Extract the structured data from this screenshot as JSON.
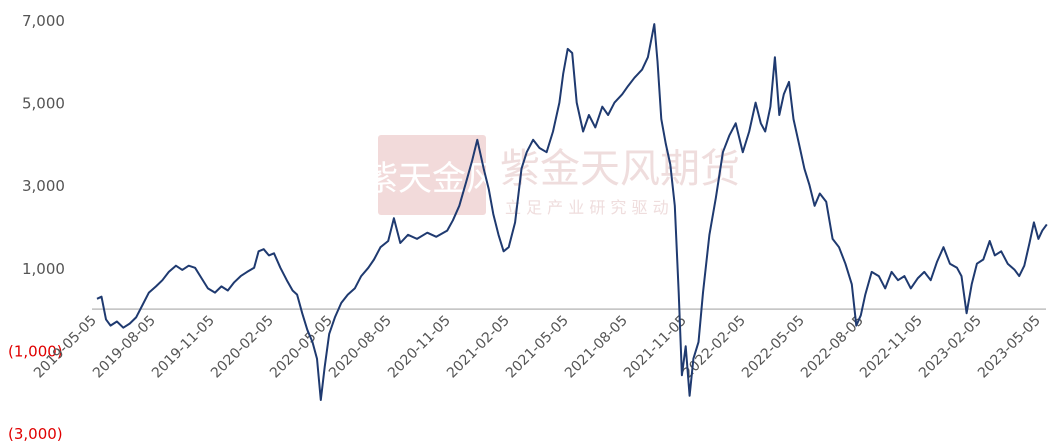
{
  "chart_data": {
    "type": "line",
    "title": "",
    "xlabel": "",
    "ylabel": "",
    "ylim": [
      -3000,
      7000
    ],
    "y_ticks": [
      {
        "value": 7000,
        "label": "7,000"
      },
      {
        "value": 5000,
        "label": "5,000"
      },
      {
        "value": 3000,
        "label": "3,000"
      },
      {
        "value": 1000,
        "label": "1,000"
      },
      {
        "value": -1000,
        "label": "(1,000)"
      },
      {
        "value": -3000,
        "label": "(3,000)"
      }
    ],
    "x_ticks": [
      "2019-05-05",
      "2019-08-05",
      "2019-11-05",
      "2020-02-05",
      "2020-05-05",
      "2020-08-05",
      "2020-11-05",
      "2021-02-05",
      "2021-05-05",
      "2021-08-05",
      "2021-11-05",
      "2022-02-05",
      "2022-05-05",
      "2022-08-05",
      "2022-11-05",
      "2023-02-05",
      "2023-05-05"
    ],
    "x_range": [
      "2019-05-05",
      "2023-05-25"
    ],
    "grid": false,
    "legend": "none",
    "series": [
      {
        "color": "#1f3a70",
        "points": [
          [
            "2019-05-05",
            250
          ],
          [
            "2019-05-12",
            300
          ],
          [
            "2019-05-19",
            -250
          ],
          [
            "2019-05-26",
            -400
          ],
          [
            "2019-06-05",
            -300
          ],
          [
            "2019-06-15",
            -450
          ],
          [
            "2019-06-25",
            -350
          ],
          [
            "2019-07-05",
            -200
          ],
          [
            "2019-07-15",
            100
          ],
          [
            "2019-07-25",
            400
          ],
          [
            "2019-08-05",
            550
          ],
          [
            "2019-08-15",
            700
          ],
          [
            "2019-08-25",
            900
          ],
          [
            "2019-09-05",
            1050
          ],
          [
            "2019-09-15",
            950
          ],
          [
            "2019-09-25",
            1050
          ],
          [
            "2019-10-05",
            1000
          ],
          [
            "2019-10-15",
            750
          ],
          [
            "2019-10-25",
            500
          ],
          [
            "2019-11-05",
            400
          ],
          [
            "2019-11-15",
            550
          ],
          [
            "2019-11-25",
            450
          ],
          [
            "2019-12-05",
            650
          ],
          [
            "2019-12-15",
            800
          ],
          [
            "2019-12-25",
            900
          ],
          [
            "2020-01-05",
            1000
          ],
          [
            "2020-01-12",
            1400
          ],
          [
            "2020-01-20",
            1450
          ],
          [
            "2020-01-28",
            1300
          ],
          [
            "2020-02-05",
            1350
          ],
          [
            "2020-02-15",
            1000
          ],
          [
            "2020-02-25",
            700
          ],
          [
            "2020-03-05",
            450
          ],
          [
            "2020-03-12",
            350
          ],
          [
            "2020-03-20",
            -100
          ],
          [
            "2020-03-28",
            -500
          ],
          [
            "2020-04-05",
            -800
          ],
          [
            "2020-04-12",
            -1200
          ],
          [
            "2020-04-18",
            -2200
          ],
          [
            "2020-04-24",
            -1400
          ],
          [
            "2020-05-01",
            -600
          ],
          [
            "2020-05-10",
            -200
          ],
          [
            "2020-05-20",
            150
          ],
          [
            "2020-05-30",
            350
          ],
          [
            "2020-06-10",
            500
          ],
          [
            "2020-06-20",
            800
          ],
          [
            "2020-07-01",
            1000
          ],
          [
            "2020-07-10",
            1200
          ],
          [
            "2020-07-20",
            1500
          ],
          [
            "2020-08-01",
            1650
          ],
          [
            "2020-08-10",
            2200
          ],
          [
            "2020-08-20",
            1600
          ],
          [
            "2020-09-01",
            1800
          ],
          [
            "2020-09-15",
            1700
          ],
          [
            "2020-10-01",
            1850
          ],
          [
            "2020-10-15",
            1750
          ],
          [
            "2020-11-01",
            1900
          ],
          [
            "2020-11-10",
            2150
          ],
          [
            "2020-11-20",
            2500
          ],
          [
            "2020-12-01",
            3100
          ],
          [
            "2020-12-10",
            3600
          ],
          [
            "2020-12-18",
            4100
          ],
          [
            "2020-12-28",
            3400
          ],
          [
            "2021-01-05",
            2900
          ],
          [
            "2021-01-12",
            2300
          ],
          [
            "2021-01-20",
            1800
          ],
          [
            "2021-01-28",
            1400
          ],
          [
            "2021-02-05",
            1500
          ],
          [
            "2021-02-15",
            2100
          ],
          [
            "2021-02-25",
            3400
          ],
          [
            "2021-03-05",
            3800
          ],
          [
            "2021-03-15",
            4100
          ],
          [
            "2021-03-25",
            3900
          ],
          [
            "2021-04-05",
            3800
          ],
          [
            "2021-04-15",
            4300
          ],
          [
            "2021-04-25",
            5000
          ],
          [
            "2021-05-01",
            5700
          ],
          [
            "2021-05-08",
            6300
          ],
          [
            "2021-05-15",
            6200
          ],
          [
            "2021-05-22",
            5000
          ],
          [
            "2021-06-01",
            4300
          ],
          [
            "2021-06-10",
            4700
          ],
          [
            "2021-06-20",
            4400
          ],
          [
            "2021-07-01",
            4900
          ],
          [
            "2021-07-10",
            4700
          ],
          [
            "2021-07-20",
            5000
          ],
          [
            "2021-08-01",
            5200
          ],
          [
            "2021-08-10",
            5400
          ],
          [
            "2021-08-20",
            5600
          ],
          [
            "2021-09-01",
            5800
          ],
          [
            "2021-09-10",
            6100
          ],
          [
            "2021-09-20",
            6900
          ],
          [
            "2021-09-25",
            6000
          ],
          [
            "2021-10-01",
            4600
          ],
          [
            "2021-10-08",
            4000
          ],
          [
            "2021-10-15",
            3500
          ],
          [
            "2021-10-22",
            2500
          ],
          [
            "2021-10-28",
            400
          ],
          [
            "2021-11-02",
            -1600
          ],
          [
            "2021-11-08",
            -900
          ],
          [
            "2021-11-14",
            -2100
          ],
          [
            "2021-11-20",
            -1200
          ],
          [
            "2021-11-28",
            -800
          ],
          [
            "2021-12-05",
            400
          ],
          [
            "2021-12-15",
            1800
          ],
          [
            "2021-12-25",
            2700
          ],
          [
            "2022-01-05",
            3800
          ],
          [
            "2022-01-15",
            4200
          ],
          [
            "2022-01-25",
            4500
          ],
          [
            "2022-02-05",
            3800
          ],
          [
            "2022-02-15",
            4300
          ],
          [
            "2022-02-25",
            5000
          ],
          [
            "2022-03-05",
            4500
          ],
          [
            "2022-03-12",
            4300
          ],
          [
            "2022-03-20",
            4900
          ],
          [
            "2022-03-27",
            6100
          ],
          [
            "2022-04-03",
            4700
          ],
          [
            "2022-04-10",
            5200
          ],
          [
            "2022-04-18",
            5500
          ],
          [
            "2022-04-25",
            4600
          ],
          [
            "2022-05-05",
            3900
          ],
          [
            "2022-05-12",
            3400
          ],
          [
            "2022-05-20",
            3000
          ],
          [
            "2022-05-28",
            2500
          ],
          [
            "2022-06-05",
            2800
          ],
          [
            "2022-06-15",
            2600
          ],
          [
            "2022-06-25",
            1700
          ],
          [
            "2022-07-05",
            1500
          ],
          [
            "2022-07-15",
            1100
          ],
          [
            "2022-07-25",
            600
          ],
          [
            "2022-08-01",
            -400
          ],
          [
            "2022-08-08",
            -150
          ],
          [
            "2022-08-15",
            350
          ],
          [
            "2022-08-25",
            900
          ],
          [
            "2022-09-05",
            800
          ],
          [
            "2022-09-15",
            500
          ],
          [
            "2022-09-25",
            900
          ],
          [
            "2022-10-05",
            700
          ],
          [
            "2022-10-15",
            800
          ],
          [
            "2022-10-25",
            500
          ],
          [
            "2022-11-05",
            750
          ],
          [
            "2022-11-15",
            900
          ],
          [
            "2022-11-25",
            700
          ],
          [
            "2022-12-05",
            1150
          ],
          [
            "2022-12-15",
            1500
          ],
          [
            "2022-12-25",
            1100
          ],
          [
            "2023-01-05",
            1000
          ],
          [
            "2023-01-12",
            800
          ],
          [
            "2023-01-20",
            -100
          ],
          [
            "2023-01-28",
            600
          ],
          [
            "2023-02-05",
            1100
          ],
          [
            "2023-02-15",
            1200
          ],
          [
            "2023-02-25",
            1650
          ],
          [
            "2023-03-05",
            1300
          ],
          [
            "2023-03-15",
            1400
          ],
          [
            "2023-03-25",
            1100
          ],
          [
            "2023-04-05",
            950
          ],
          [
            "2023-04-12",
            800
          ],
          [
            "2023-04-20",
            1050
          ],
          [
            "2023-04-28",
            1600
          ],
          [
            "2023-05-05",
            2100
          ],
          [
            "2023-05-12",
            1700
          ],
          [
            "2023-05-18",
            1900
          ],
          [
            "2023-05-25",
            2050
          ]
        ]
      }
    ]
  },
  "watermark": {
    "brand": "紫金天风期货",
    "slogan": "立 足 产 业   研 究 驱 动",
    "seal": "紫天金风",
    "color": "#e8b9b9"
  },
  "colors": {
    "axis_label_positive": "#555555",
    "axis_label_negative": "#e00000",
    "zero_line": "#bfbfbf"
  }
}
